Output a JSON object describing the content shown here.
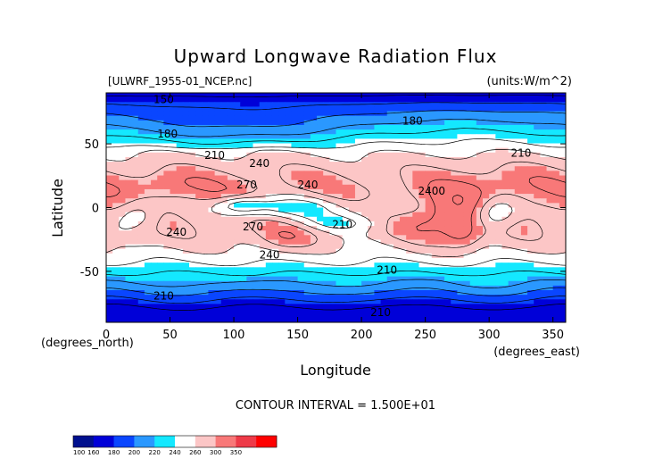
{
  "chart_data": {
    "type": "heatmap",
    "title": "Upward Longwave Radiation Flux",
    "file_label": "[ULWRF_1955-01_NCEP.nc]",
    "units_label": "(units:W/m^2)",
    "xlabel": "Longitude",
    "ylabel": "Latitude",
    "x_unit_label": "(degrees_east)",
    "y_unit_label": "(degrees_north)",
    "xlim": [
      0,
      360
    ],
    "ylim": [
      -90,
      90
    ],
    "x_ticks": [
      0,
      50,
      100,
      150,
      200,
      250,
      300,
      350
    ],
    "y_ticks": [
      -50,
      0,
      50
    ],
    "contour_interval_text": "CONTOUR INTERVAL = 1.500E+01",
    "contour_labels": [
      {
        "text": "150",
        "lon": 45,
        "lat": 82
      },
      {
        "text": "180",
        "lon": 48,
        "lat": 55
      },
      {
        "text": "180",
        "lon": 240,
        "lat": 65
      },
      {
        "text": "210",
        "lon": 85,
        "lat": 38
      },
      {
        "text": "240",
        "lon": 120,
        "lat": 32
      },
      {
        "text": "270",
        "lon": 110,
        "lat": 15
      },
      {
        "text": "240",
        "lon": 158,
        "lat": 15
      },
      {
        "text": "210",
        "lon": 325,
        "lat": 40
      },
      {
        "text": "2400",
        "lon": 255,
        "lat": 10
      },
      {
        "text": "240",
        "lon": 55,
        "lat": -22
      },
      {
        "text": "270",
        "lon": 115,
        "lat": -18
      },
      {
        "text": "210",
        "lon": 185,
        "lat": -16
      },
      {
        "text": "240",
        "lon": 128,
        "lat": -40
      },
      {
        "text": "210",
        "lon": 220,
        "lat": -52
      },
      {
        "text": "210",
        "lon": 45,
        "lat": -72
      },
      {
        "text": "210",
        "lon": 215,
        "lat": -85
      }
    ],
    "colorbar": {
      "levels": [
        100,
        160,
        180,
        200,
        220,
        240,
        260,
        300,
        350
      ],
      "colors": [
        "#00108e",
        "#0000d8",
        "#0a46ff",
        "#2a98ff",
        "#14e8ff",
        "#ffffff",
        "#fcc6c6",
        "#f87878",
        "#ee3a48",
        "#ff0000"
      ]
    }
  }
}
